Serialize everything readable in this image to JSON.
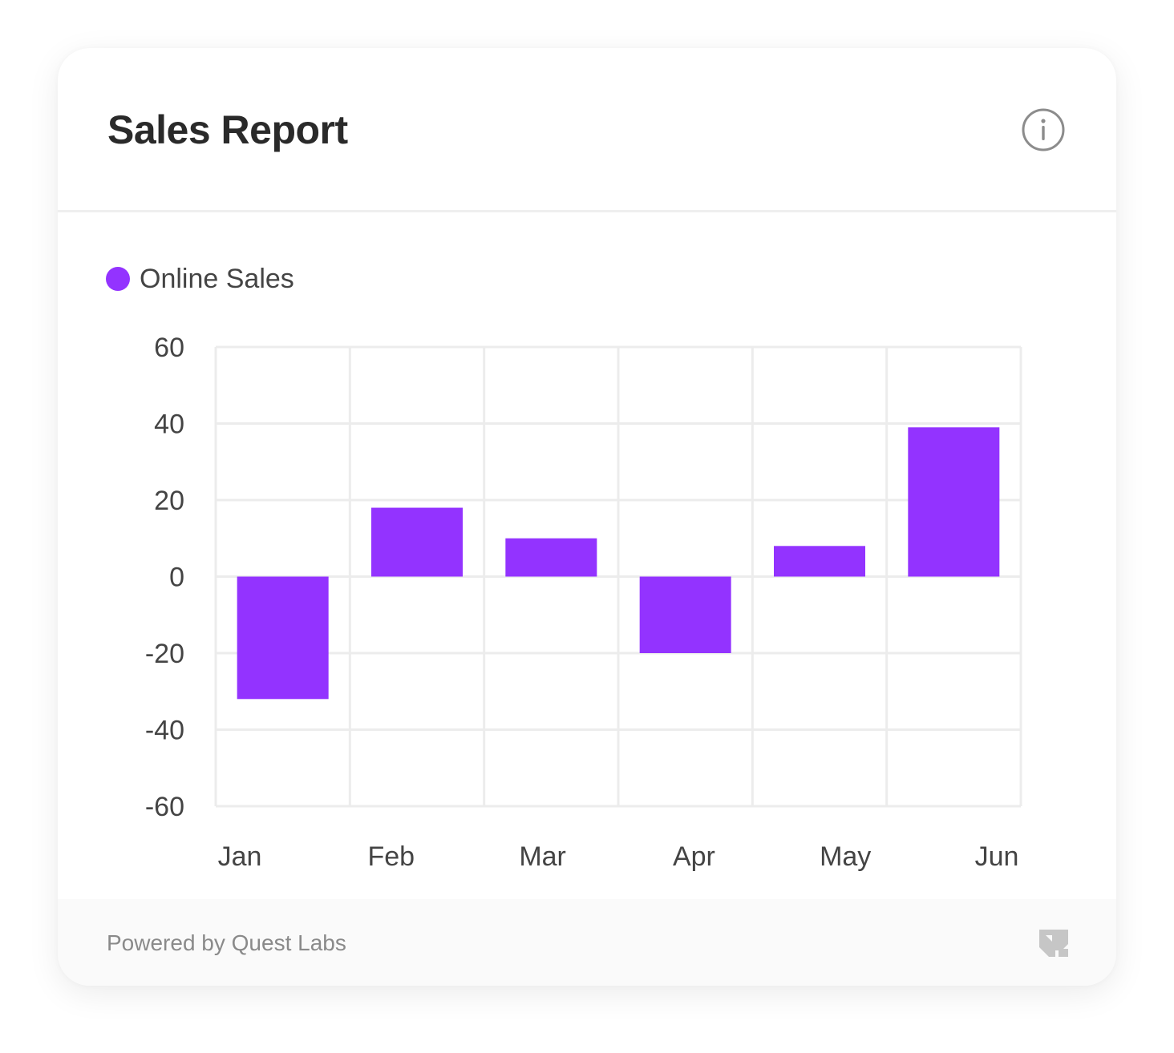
{
  "card": {
    "title": "Sales Report",
    "footer_text": "Powered by Quest Labs"
  },
  "icons": {
    "info": "info-circle-icon",
    "logo": "quest-labs-logo-icon"
  },
  "colors": {
    "bar": "#9333FF",
    "grid": "#ececec",
    "text": "#444444"
  },
  "chart_data": {
    "type": "bar",
    "categories": [
      "Jan",
      "Feb",
      "Mar",
      "Apr",
      "May",
      "Jun"
    ],
    "series": [
      {
        "name": "Online Sales",
        "values": [
          -32,
          18,
          10,
          -20,
          8,
          39
        ]
      }
    ],
    "yticks": [
      60,
      40,
      20,
      0,
      -20,
      -40,
      -60
    ],
    "ylim": [
      -60,
      60
    ],
    "grid": true,
    "legend": "top-left"
  }
}
